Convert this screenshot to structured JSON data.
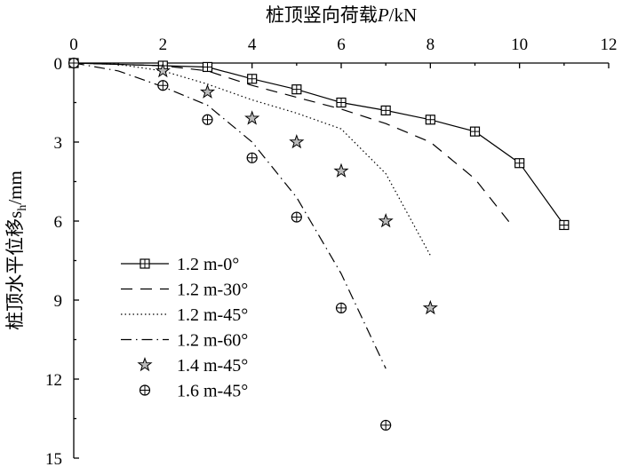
{
  "chart_data": {
    "type": "line",
    "xlabel_main": "桩顶竖向荷载",
    "xlabel_var": "P",
    "xlabel_unit": "/kN",
    "ylabel_main": "桩顶水平位移",
    "ylabel_var": "s",
    "ylabel_sub": "h",
    "ylabel_unit": "/mm",
    "x_axis_position": "top",
    "y_inverted": true,
    "xlim": [
      0,
      12
    ],
    "ylim": [
      0,
      15
    ],
    "x_ticks": [
      0,
      2,
      4,
      6,
      8,
      10,
      12
    ],
    "y_ticks": [
      0,
      3,
      6,
      9,
      12,
      15
    ],
    "legend_position": "lower-left",
    "series": [
      {
        "name": "1.2 m-0°",
        "style": "solid",
        "marker": "square-cross",
        "x": [
          0,
          2,
          3,
          4,
          5,
          6,
          7,
          8,
          9,
          10,
          11
        ],
        "y": [
          0,
          0.1,
          0.15,
          0.6,
          1.0,
          1.5,
          1.8,
          2.15,
          2.6,
          3.8,
          6.15
        ]
      },
      {
        "name": "1.2 m-30°",
        "style": "dashed",
        "marker": "none",
        "x": [
          0,
          2,
          3,
          4,
          5,
          6,
          7,
          8,
          9,
          9.8
        ],
        "y": [
          0,
          0.1,
          0.3,
          0.85,
          1.3,
          1.75,
          2.3,
          3.0,
          4.4,
          6.1
        ]
      },
      {
        "name": "1.2 m-45°",
        "style": "dotted",
        "marker": "none",
        "x": [
          0,
          1,
          2,
          3,
          4,
          5,
          6,
          7,
          8
        ],
        "y": [
          0,
          0.05,
          0.3,
          0.8,
          1.4,
          1.9,
          2.5,
          4.2,
          7.3
        ]
      },
      {
        "name": "1.2 m-60°",
        "style": "dashdot",
        "marker": "none",
        "x": [
          0,
          1,
          2,
          3,
          4,
          5,
          6,
          7
        ],
        "y": [
          0,
          0.3,
          0.9,
          1.6,
          3.0,
          5.1,
          8.0,
          11.6
        ]
      },
      {
        "name": "1.4 m-45°",
        "style": "none",
        "marker": "star",
        "x": [
          2,
          3,
          4,
          5,
          6,
          7,
          8
        ],
        "y": [
          0.3,
          1.1,
          2.1,
          3.0,
          4.1,
          6.0,
          9.3
        ]
      },
      {
        "name": "1.6 m-45°",
        "style": "none",
        "marker": "circle-cross",
        "x": [
          0,
          2,
          3,
          4,
          5,
          6,
          7
        ],
        "y": [
          0,
          0.85,
          2.15,
          3.6,
          5.85,
          9.3,
          13.75
        ]
      }
    ]
  }
}
